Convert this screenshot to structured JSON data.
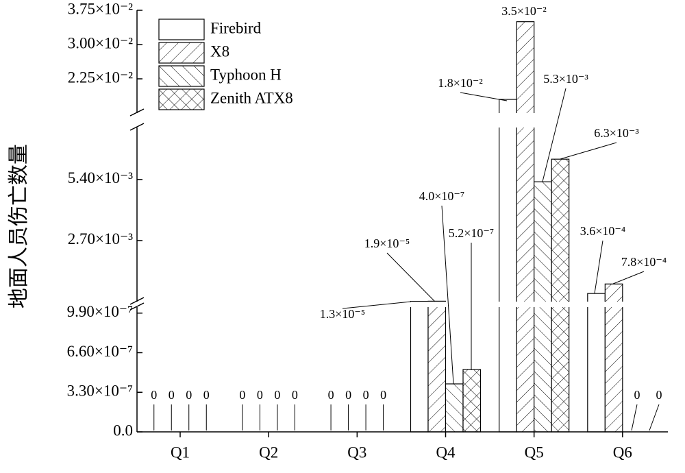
{
  "chart_data": {
    "type": "bar",
    "y_label": "地面人员伤亡数量",
    "categories": [
      "Q1",
      "Q2",
      "Q3",
      "Q4",
      "Q5",
      "Q6"
    ],
    "series": [
      {
        "name": "Firebird",
        "color": "#000000",
        "hatch": "none",
        "values": [
          0,
          0,
          0,
          1.3e-05,
          0.018,
          0.00036
        ],
        "value_labels": [
          "0",
          "0",
          "0",
          "1.3×10⁻⁵",
          "1.8×10⁻²",
          "3.6×10⁻⁴"
        ]
      },
      {
        "name": "X8",
        "color": "#000000",
        "hatch": "forward",
        "values": [
          0,
          0,
          0,
          1.9e-05,
          0.035,
          0.00078
        ],
        "value_labels": [
          "0",
          "0",
          "0",
          "1.9×10⁻⁵",
          "3.5×10⁻²",
          "7.8×10⁻⁴"
        ]
      },
      {
        "name": "Typhoon H",
        "color": "#000000",
        "hatch": "backward",
        "values": [
          0,
          0,
          0,
          4e-07,
          0.0053,
          0
        ],
        "value_labels": [
          "0",
          "0",
          "0",
          "4.0×10⁻⁷",
          "5.3×10⁻³",
          "0"
        ]
      },
      {
        "name": "Zenith ATX8",
        "color": "#000000",
        "hatch": "cross",
        "values": [
          0,
          0,
          0,
          5.2e-07,
          0.0063,
          0
        ],
        "value_labels": [
          "0",
          "0",
          "0",
          "5.2×10⁻⁷",
          "6.3×10⁻³",
          "0"
        ]
      }
    ],
    "y_segments": [
      {
        "ylim": [
          0,
          1.04e-06
        ],
        "yticks": [
          {
            "value": 0,
            "label": "0.0"
          },
          {
            "value": 3.3e-07,
            "label": "3.30×10⁻⁷"
          },
          {
            "value": 6.6e-07,
            "label": "6.60×10⁻⁷"
          },
          {
            "value": 9.9e-07,
            "label": "9.90×10⁻⁷"
          }
        ]
      },
      {
        "ylim": [
          0,
          0.0077
        ],
        "yticks": [
          {
            "value": 0.0027,
            "label": "2.70×10⁻³"
          },
          {
            "value": 0.0054,
            "label": "5.40×10⁻³"
          }
        ]
      },
      {
        "ylim": [
          0.015,
          0.0375
        ],
        "yticks": [
          {
            "value": 0.0225,
            "label": "2.25×10⁻²"
          },
          {
            "value": 0.03,
            "label": "3.00×10⁻²"
          },
          {
            "value": 0.0375,
            "label": "3.75×10⁻²"
          }
        ]
      }
    ],
    "legend": "upper left"
  }
}
